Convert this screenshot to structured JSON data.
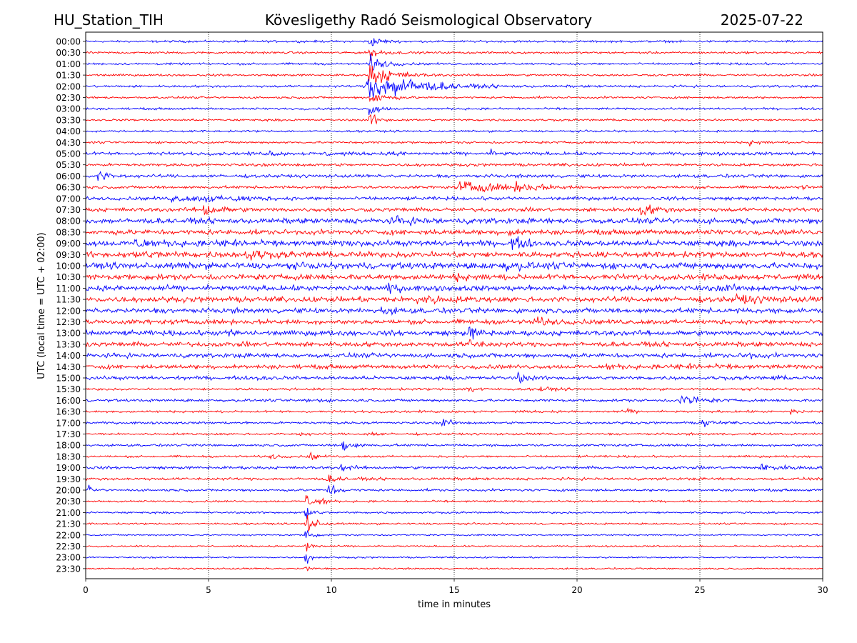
{
  "header": {
    "station": "HU_Station_TIH",
    "observatory": "Kövesligethy Radó Seismological Observatory",
    "date": "2025-07-22"
  },
  "chart_data": {
    "type": "line",
    "title": "Kövesligethy Radó Seismological Observatory",
    "xlabel": "time in minutes",
    "ylabel": "UTC (local time = UTC + 02:00)",
    "xlim": [
      0,
      30
    ],
    "x_ticks": [
      "0",
      "5",
      "10",
      "15",
      "20",
      "25",
      "30"
    ],
    "grid": "vertical dotted lines at x ticks",
    "colors": [
      "#0000ff",
      "#ff0000"
    ],
    "series": [
      {
        "name": "00:00",
        "noise": 1.2,
        "events": [
          [
            11.55,
            6,
            0.4,
            1.0
          ]
        ]
      },
      {
        "name": "00:30",
        "noise": 1.2,
        "events": [
          [
            11.55,
            8,
            0.4,
            1.0
          ]
        ]
      },
      {
        "name": "01:00",
        "noise": 1.2,
        "events": [
          [
            11.55,
            10,
            0.5,
            1.0
          ]
        ]
      },
      {
        "name": "01:30",
        "noise": 1.2,
        "events": [
          [
            11.55,
            14,
            0.8,
            1.0
          ]
        ]
      },
      {
        "name": "02:00",
        "noise": 1.3,
        "events": [
          [
            11.45,
            18,
            1.2,
            1.0
          ],
          [
            12.6,
            6,
            1.5,
            1.0
          ]
        ]
      },
      {
        "name": "02:30",
        "noise": 1.2,
        "events": [
          [
            11.55,
            10,
            0.5,
            1.0
          ]
        ]
      },
      {
        "name": "03:00",
        "noise": 1.2,
        "events": [
          [
            11.55,
            9,
            0.3,
            1.0
          ]
        ]
      },
      {
        "name": "03:30",
        "noise": 1.2,
        "events": [
          [
            11.55,
            8,
            0.3,
            1.0
          ]
        ]
      },
      {
        "name": "04:00",
        "noise": 1.1,
        "events": []
      },
      {
        "name": "04:30",
        "noise": 1.3,
        "events": [
          [
            27.0,
            3,
            0.3,
            1.0
          ]
        ]
      },
      {
        "name": "05:00",
        "noise": 1.8,
        "events": [
          [
            7.5,
            3,
            0.2,
            1.0
          ],
          [
            9.8,
            3,
            0.3,
            1.0
          ],
          [
            12.5,
            4,
            0.2,
            1.0
          ],
          [
            16.5,
            3,
            0.3,
            1.0
          ]
        ]
      },
      {
        "name": "05:30",
        "noise": 1.6,
        "events": []
      },
      {
        "name": "06:00",
        "noise": 1.8,
        "events": [
          [
            0.5,
            6,
            0.4,
            1.0
          ]
        ]
      },
      {
        "name": "06:30",
        "noise": 1.6,
        "events": [
          [
            15.2,
            5,
            2.2,
            0.8
          ],
          [
            17.5,
            3,
            1.2,
            0.8
          ],
          [
            29.0,
            3,
            0.3,
            1.0
          ]
        ]
      },
      {
        "name": "07:00",
        "noise": 1.9,
        "events": [
          [
            3.5,
            3,
            1.0,
            1.0
          ],
          [
            6.0,
            3,
            0.8,
            1.0
          ],
          [
            4.8,
            5,
            0.3,
            1.0
          ]
        ]
      },
      {
        "name": "07:30",
        "noise": 2.2,
        "events": [
          [
            4.8,
            8,
            0.5,
            1.0
          ],
          [
            22.6,
            7,
            0.5,
            1.0
          ]
        ]
      },
      {
        "name": "08:00",
        "noise": 3.0,
        "events": [
          [
            12.5,
            3,
            1.0,
            1.0
          ]
        ]
      },
      {
        "name": "08:30",
        "noise": 2.8,
        "events": [
          [
            17.2,
            4,
            0.3,
            1.0
          ]
        ]
      },
      {
        "name": "09:00",
        "noise": 3.2,
        "events": [
          [
            2.0,
            4,
            0.8,
            1.0
          ],
          [
            5.5,
            5,
            0.5,
            1.0
          ],
          [
            17.3,
            8,
            0.4,
            1.0
          ]
        ]
      },
      {
        "name": "09:30",
        "noise": 3.2,
        "events": [
          [
            6.5,
            6,
            0.7,
            1.0
          ],
          [
            2.0,
            3,
            1.0,
            1.0
          ]
        ]
      },
      {
        "name": "10:00",
        "noise": 3.6,
        "events": [
          [
            17.0,
            4,
            0.6,
            1.0
          ]
        ]
      },
      {
        "name": "10:30",
        "noise": 3.2,
        "events": [
          [
            15.0,
            3,
            0.5,
            1.0
          ]
        ]
      },
      {
        "name": "11:00",
        "noise": 3.0,
        "events": [
          [
            12.3,
            5,
            0.4,
            1.0
          ],
          [
            26.0,
            3,
            0.4,
            1.0
          ]
        ]
      },
      {
        "name": "11:30",
        "noise": 3.0,
        "events": [
          [
            13.5,
            4,
            1.0,
            1.0
          ],
          [
            26.5,
            4,
            1.0,
            1.0
          ]
        ]
      },
      {
        "name": "12:00",
        "noise": 2.8,
        "events": [
          [
            12.0,
            4,
            0.5,
            1.0
          ]
        ]
      },
      {
        "name": "12:30",
        "noise": 2.6,
        "events": [
          [
            18.2,
            5,
            0.5,
            1.0
          ]
        ]
      },
      {
        "name": "13:00",
        "noise": 2.8,
        "events": [
          [
            5.8,
            4,
            0.3,
            1.0
          ],
          [
            15.6,
            7,
            0.4,
            1.0
          ]
        ]
      },
      {
        "name": "13:30",
        "noise": 2.6,
        "events": [
          [
            15.6,
            5,
            0.4,
            1.0
          ]
        ]
      },
      {
        "name": "14:00",
        "noise": 2.5,
        "events": [
          [
            26.8,
            5,
            0.3,
            1.0
          ]
        ]
      },
      {
        "name": "14:30",
        "noise": 2.3,
        "events": [
          [
            21.2,
            3,
            0.5,
            1.0
          ],
          [
            24.0,
            3,
            1.0,
            1.0
          ]
        ]
      },
      {
        "name": "15:00",
        "noise": 2.0,
        "events": [
          [
            7.0,
            3,
            0.3,
            1.0
          ],
          [
            17.6,
            6,
            0.3,
            1.0
          ],
          [
            28.0,
            3,
            0.2,
            1.0
          ]
        ]
      },
      {
        "name": "15:30",
        "noise": 1.3,
        "events": [
          [
            15.5,
            7,
            0.3,
            1.0
          ],
          [
            18.5,
            3,
            0.4,
            1.0
          ]
        ]
      },
      {
        "name": "16:00",
        "noise": 1.5,
        "events": [
          [
            24.2,
            8,
            0.6,
            1.0
          ],
          [
            9.0,
            3,
            0.3,
            1.0
          ]
        ]
      },
      {
        "name": "16:30",
        "noise": 1.3,
        "events": [
          [
            28.7,
            4,
            0.2,
            1.0
          ],
          [
            22.0,
            3,
            0.2,
            1.0
          ]
        ]
      },
      {
        "name": "17:00",
        "noise": 1.3,
        "events": [
          [
            14.5,
            6,
            0.3,
            1.0
          ],
          [
            25.1,
            6,
            0.3,
            1.0
          ]
        ]
      },
      {
        "name": "17:30",
        "noise": 1.2,
        "events": [
          [
            8.7,
            3,
            0.2,
            1.0
          ],
          [
            11.5,
            3,
            0.3,
            1.0
          ]
        ]
      },
      {
        "name": "18:00",
        "noise": 1.3,
        "events": [
          [
            10.45,
            10,
            0.3,
            1.0
          ]
        ]
      },
      {
        "name": "18:30",
        "noise": 1.2,
        "events": [
          [
            9.1,
            6,
            0.2,
            1.0
          ],
          [
            7.5,
            3,
            0.3,
            1.0
          ]
        ]
      },
      {
        "name": "19:00",
        "noise": 1.6,
        "events": [
          [
            10.4,
            5,
            0.3,
            1.0
          ],
          [
            27.5,
            3,
            1.0,
            1.0
          ]
        ]
      },
      {
        "name": "19:30",
        "noise": 1.5,
        "events": [
          [
            9.8,
            4,
            0.4,
            1.0
          ]
        ]
      },
      {
        "name": "20:00",
        "noise": 1.3,
        "events": [
          [
            9.85,
            10,
            0.3,
            1.0
          ],
          [
            0.1,
            5,
            0.1,
            1.0
          ]
        ]
      },
      {
        "name": "20:30",
        "noise": 1.1,
        "events": [
          [
            8.95,
            12,
            0.2,
            1.0
          ],
          [
            9.55,
            8,
            0.2,
            1.0
          ]
        ]
      },
      {
        "name": "21:00",
        "noise": 1.1,
        "events": [
          [
            8.95,
            14,
            0.2,
            1.0
          ]
        ]
      },
      {
        "name": "21:30",
        "noise": 1.0,
        "events": [
          [
            8.95,
            16,
            0.3,
            1.0
          ]
        ]
      },
      {
        "name": "22:00",
        "noise": 0.9,
        "events": [
          [
            8.95,
            12,
            0.2,
            1.0
          ]
        ]
      },
      {
        "name": "22:30",
        "noise": 0.9,
        "events": [
          [
            8.95,
            10,
            0.2,
            1.0
          ]
        ]
      },
      {
        "name": "23:00",
        "noise": 0.9,
        "events": [
          [
            8.95,
            8,
            0.2,
            1.0
          ]
        ]
      },
      {
        "name": "23:30",
        "noise": 0.9,
        "events": [
          [
            8.95,
            4,
            0.2,
            1.0
          ]
        ]
      }
    ]
  }
}
